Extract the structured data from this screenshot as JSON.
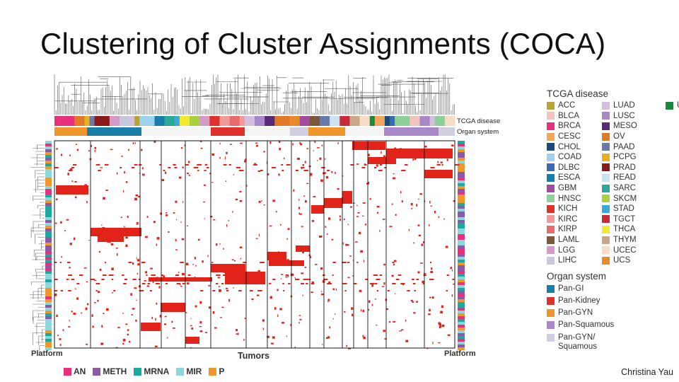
{
  "title": "Clustering of Cluster Assignments (COCA)",
  "credit": "Christina Yau",
  "axis_labels": {
    "platform_left": "Platform",
    "tumors": "Tumors",
    "platform_right": "Platform"
  },
  "track_labels": {
    "tcga": "TCGA disease",
    "organ": "Organ system"
  },
  "legend": {
    "tcga_title": "TCGA disease",
    "tcga_items": [
      {
        "code": "ACC",
        "color": "#b8a23c"
      },
      {
        "code": "BLCA",
        "color": "#f4c3c0"
      },
      {
        "code": "BRCA",
        "color": "#e8307c"
      },
      {
        "code": "CESC",
        "color": "#f2a65a"
      },
      {
        "code": "CHOL",
        "color": "#1a4b7a"
      },
      {
        "code": "COAD",
        "color": "#9dd3ee"
      },
      {
        "code": "DLBC",
        "color": "#3a6bb5"
      },
      {
        "code": "ESCA",
        "color": "#1a7fa8"
      },
      {
        "code": "GBM",
        "color": "#a24a9e"
      },
      {
        "code": "HNSC",
        "color": "#8ecf9a"
      },
      {
        "code": "KICH",
        "color": "#e0302c"
      },
      {
        "code": "KIRC",
        "color": "#f29a9a"
      },
      {
        "code": "KIRP",
        "color": "#e86a6a"
      },
      {
        "code": "LAML",
        "color": "#7a5a3a"
      },
      {
        "code": "LGG",
        "color": "#d49ac8"
      },
      {
        "code": "LIHC",
        "color": "#c8c8dc"
      },
      {
        "code": "LUAD",
        "color": "#d4c0de"
      },
      {
        "code": "LUSC",
        "color": "#a888c8"
      },
      {
        "code": "MESO",
        "color": "#5a2a7a"
      },
      {
        "code": "OV",
        "color": "#e07a2a"
      },
      {
        "code": "PAAD",
        "color": "#6a7aa8"
      },
      {
        "code": "PCPG",
        "color": "#e8b020"
      },
      {
        "code": "PRAD",
        "color": "#8a1a1a"
      },
      {
        "code": "READ",
        "color": "#c8e4f2"
      },
      {
        "code": "SARC",
        "color": "#2aa89a"
      },
      {
        "code": "SKCM",
        "color": "#a8d040"
      },
      {
        "code": "STAD",
        "color": "#3aa8d8"
      },
      {
        "code": "TGCT",
        "color": "#c82a3a"
      },
      {
        "code": "THCA",
        "color": "#f4e830"
      },
      {
        "code": "THYM",
        "color": "#c8a888"
      },
      {
        "code": "UCEC",
        "color": "#f8dcc8"
      },
      {
        "code": "UCS",
        "color": "#e88a2a"
      },
      {
        "code": "UVM",
        "color": "#1a8a3a"
      }
    ],
    "organ_title": "Organ system",
    "organ_items": [
      {
        "label": "Pan-GI",
        "color": "#1a7fa8"
      },
      {
        "label": "Pan-Kidney",
        "color": "#e0302c"
      },
      {
        "label": "Pan-GYN",
        "color": "#f0962a"
      },
      {
        "label": "Pan-Squamous",
        "color": "#a888c8"
      },
      {
        "label": "Pan-GYN/\nSquamous",
        "color": "#cfcfe0"
      }
    ],
    "platform_items": [
      {
        "label": "AN",
        "color": "#e8307c"
      },
      {
        "label": "METH",
        "color": "#8a5aa8"
      },
      {
        "label": "MRNA",
        "color": "#1aa8a0"
      },
      {
        "label": "MIR",
        "color": "#8ad8dc"
      },
      {
        "label": "P",
        "color": "#f0962a"
      }
    ]
  },
  "colors": {
    "cell": "#e2231a",
    "grid": "#111111"
  }
}
